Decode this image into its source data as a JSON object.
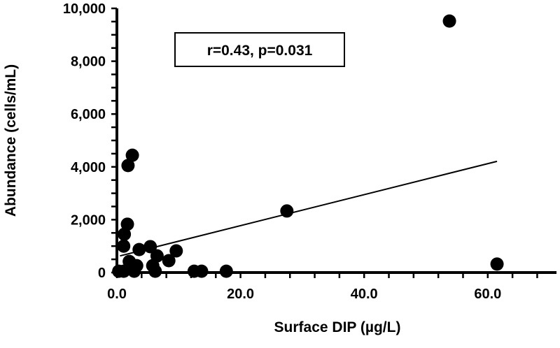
{
  "chart_data": {
    "type": "scatter",
    "title": "",
    "xlabel": "Surface DIP (µg/L)",
    "ylabel": "Abundance (cells/mL)",
    "xlim": [
      0,
      70
    ],
    "ylim": [
      0,
      10000
    ],
    "x_ticks": [
      0,
      20,
      40,
      60
    ],
    "x_tick_labels": [
      "0.0",
      "20.0",
      "40.0",
      "60.0"
    ],
    "y_ticks": [
      0,
      2000,
      4000,
      6000,
      8000,
      10000
    ],
    "y_tick_labels": [
      "0",
      "2,000",
      "4,000",
      "6,000",
      "8,000",
      "10,000"
    ],
    "grid": false,
    "annotation": "r=0.43, p=0.031",
    "marker_color": "#000000",
    "points": [
      {
        "x": 2.5,
        "y": 4440
      },
      {
        "x": 1.8,
        "y": 4050
      },
      {
        "x": 1.7,
        "y": 1830
      },
      {
        "x": 1.2,
        "y": 1450
      },
      {
        "x": 1.1,
        "y": 1000
      },
      {
        "x": 3.6,
        "y": 870
      },
      {
        "x": 5.4,
        "y": 980
      },
      {
        "x": 9.6,
        "y": 820
      },
      {
        "x": 6.5,
        "y": 630
      },
      {
        "x": 8.4,
        "y": 450
      },
      {
        "x": 2.0,
        "y": 420
      },
      {
        "x": 3.2,
        "y": 260
      },
      {
        "x": 5.8,
        "y": 260
      },
      {
        "x": 0.3,
        "y": 50
      },
      {
        "x": 1.1,
        "y": 50
      },
      {
        "x": 2.8,
        "y": 50
      },
      {
        "x": 6.2,
        "y": 50
      },
      {
        "x": 12.5,
        "y": 50
      },
      {
        "x": 13.7,
        "y": 50
      },
      {
        "x": 17.7,
        "y": 50
      },
      {
        "x": 27.5,
        "y": 2330
      },
      {
        "x": 53.8,
        "y": 9520
      },
      {
        "x": 61.5,
        "y": 320
      }
    ],
    "trendline": {
      "x": [
        0.5,
        61.5
      ],
      "y": [
        630,
        4210
      ]
    }
  }
}
